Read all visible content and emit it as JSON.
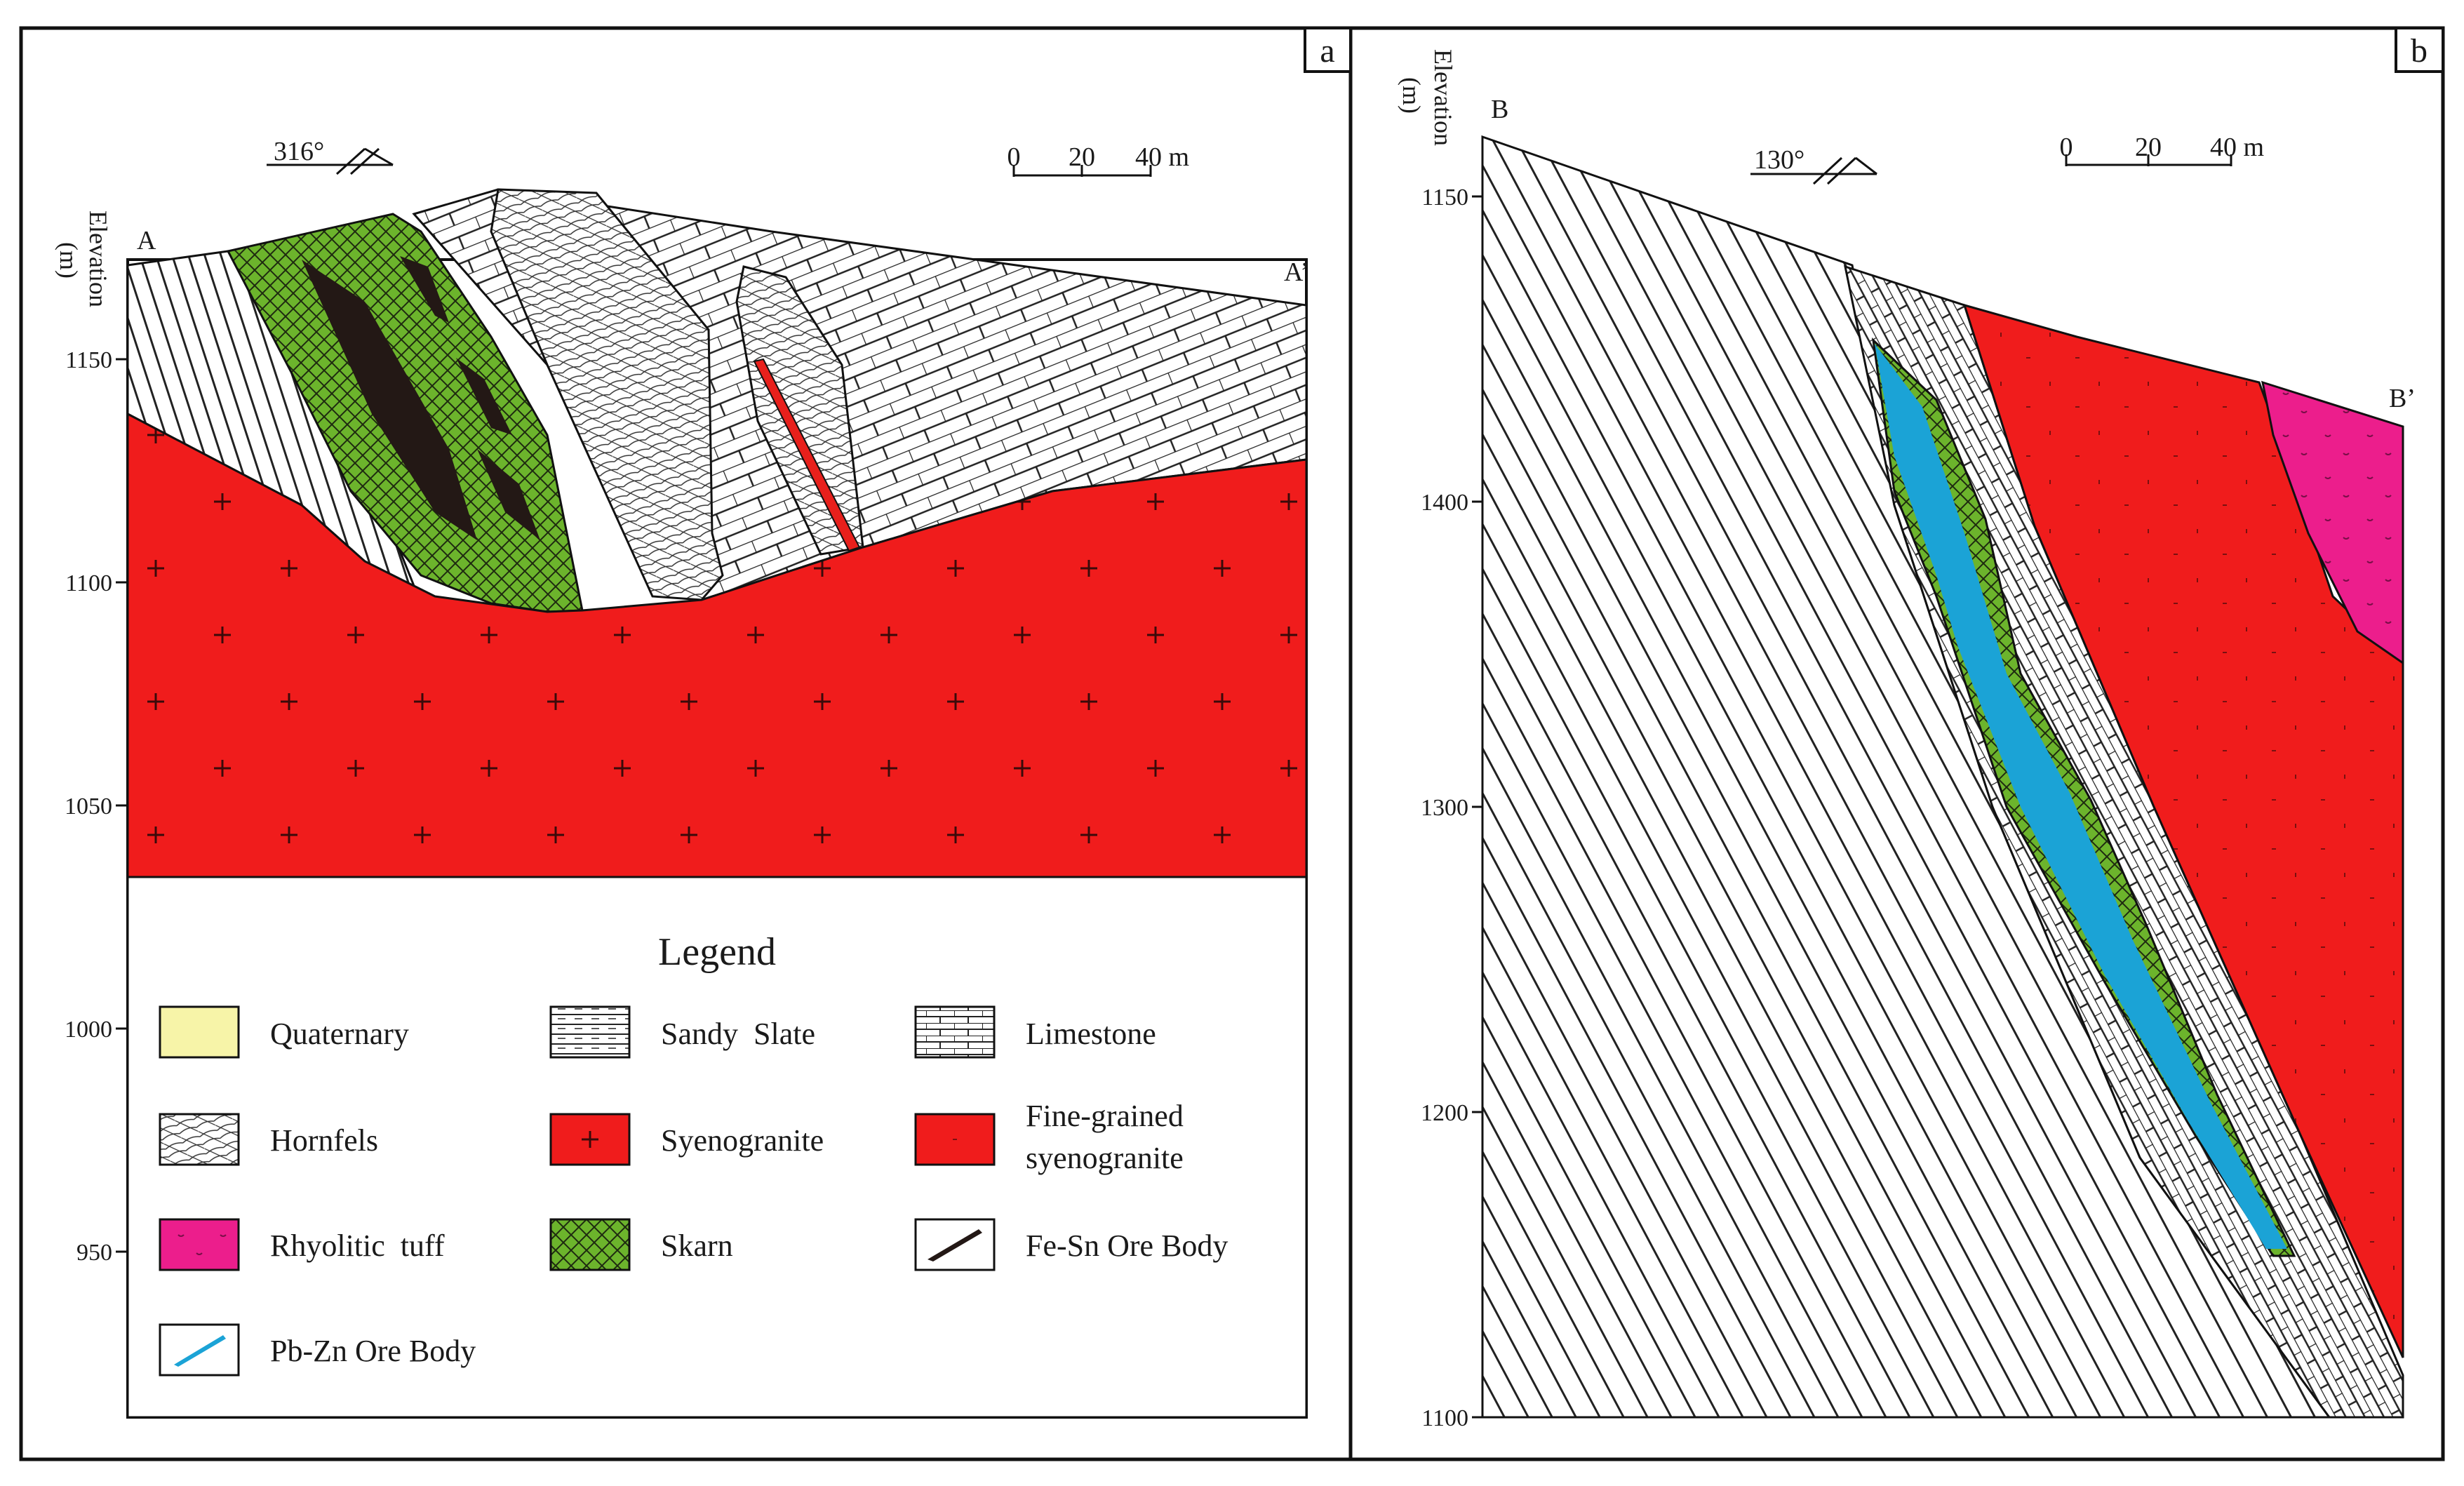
{
  "panel_a": {
    "label": "a",
    "strike": "316°",
    "scale": {
      "ticks": [
        "0",
        "20",
        "40 m"
      ]
    },
    "section_start": "A",
    "section_end": "A’",
    "axis_title": "Elevation",
    "axis_unit": "(m)",
    "axis_ticks": [
      "1150",
      "1100",
      "1050",
      "1000",
      "950"
    ]
  },
  "panel_b": {
    "label": "b",
    "strike": "130°",
    "scale": {
      "ticks": [
        "0",
        "20",
        "40 m"
      ]
    },
    "section_start": "B",
    "section_end": "B’",
    "axis_title": "Elevation",
    "axis_unit": "(m)",
    "axis_ticks": [
      "1150",
      "1400",
      "1300",
      "1200",
      "1100"
    ]
  },
  "legend": {
    "title": "Legend",
    "items": [
      {
        "label": "Quaternary",
        "pattern": "quaternary",
        "color": "#f7f4a8"
      },
      {
        "label": "Sandy  Slate",
        "pattern": "sandy-slate",
        "color": "#ffffff"
      },
      {
        "label": "Limestone",
        "pattern": "limestone",
        "color": "#ffffff"
      },
      {
        "label": "Hornfels",
        "pattern": "hornfels",
        "color": "#ffffff"
      },
      {
        "label": "Syenogranite",
        "pattern": "syenogranite",
        "color": "#f01c1c"
      },
      {
        "label_lines": [
          "Fine-grained",
          "syenogranite"
        ],
        "pattern": "fine-syenogranite",
        "color": "#f01c1c"
      },
      {
        "label": "Rhyolitic  tuff",
        "pattern": "rhyolitic-tuff",
        "color": "#ec1e8c"
      },
      {
        "label": "Skarn",
        "pattern": "skarn",
        "color": "#6cb42c"
      },
      {
        "label": "Fe-Sn Ore Body",
        "pattern": "fe-sn-ore",
        "color": "#231815"
      },
      {
        "label": "Pb-Zn Ore Body",
        "pattern": "pb-zn-ore",
        "color": "#1ba3d6"
      }
    ]
  },
  "colors": {
    "syenogranite": "#f01c1c",
    "skarn": "#6cb42c",
    "rhyolitic_tuff": "#ec1e8c",
    "pb_zn_ore": "#1ba3d6",
    "fe_sn_ore": "#231815",
    "quaternary": "#f7f4a8"
  }
}
